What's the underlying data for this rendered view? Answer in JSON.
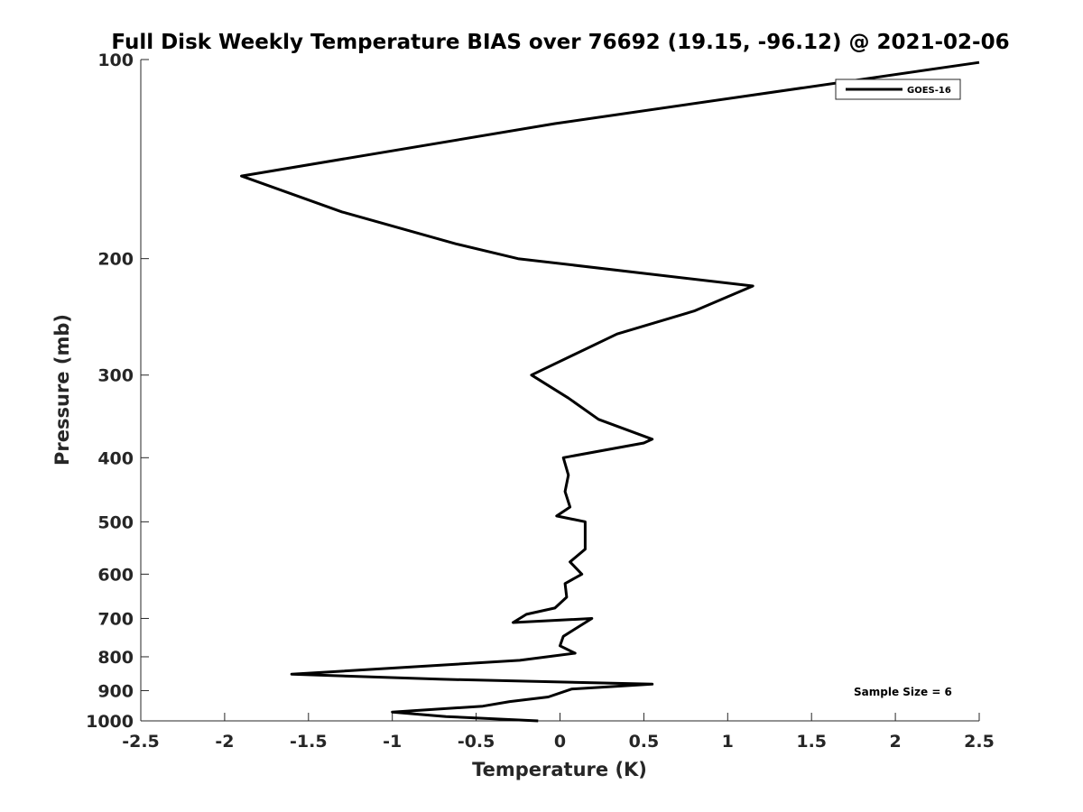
{
  "chart_data": {
    "type": "line",
    "title": "Full Disk Weekly Temperature BIAS over 76692 (19.15, -96.12) @ 2021-02-06",
    "xlabel": "Temperature (K)",
    "ylabel": "Pressure (mb)",
    "xlim": [
      -2.5,
      2.5
    ],
    "ylim": [
      100,
      1000
    ],
    "y_scale": "log",
    "y_reversed": true,
    "x_ticks": [
      -2.5,
      -2,
      -1.5,
      -1,
      -0.5,
      0,
      0.5,
      1,
      1.5,
      2,
      2.5
    ],
    "x_tick_labels": [
      "-2.5",
      "-2",
      "-1.5",
      "-1",
      "-0.5",
      "0",
      "0.5",
      "1",
      "1.5",
      "2",
      "2.5"
    ],
    "y_ticks": [
      100,
      200,
      300,
      400,
      500,
      600,
      700,
      800,
      900,
      1000
    ],
    "y_tick_labels": [
      "100",
      "200",
      "300",
      "400",
      "500",
      "600",
      "700",
      "800",
      "900",
      "1000"
    ],
    "grid": false,
    "legend_position": "top-right",
    "series": [
      {
        "name": "GOES-16",
        "color": "#000000",
        "points": [
          [
            2.5,
            101
          ],
          [
            -0.03,
            125
          ],
          [
            -1.9,
            150
          ],
          [
            -1.3,
            170
          ],
          [
            -0.62,
            190
          ],
          [
            -0.25,
            200
          ],
          [
            1.15,
            220
          ],
          [
            0.8,
            240
          ],
          [
            0.34,
            260
          ],
          [
            -0.17,
            300
          ],
          [
            0.05,
            325
          ],
          [
            0.23,
            350
          ],
          [
            0.55,
            375
          ],
          [
            0.5,
            380
          ],
          [
            0.02,
            400
          ],
          [
            0.05,
            425
          ],
          [
            0.03,
            450
          ],
          [
            0.06,
            475
          ],
          [
            -0.02,
            490
          ],
          [
            0.15,
            500
          ],
          [
            0.15,
            550
          ],
          [
            0.06,
            575
          ],
          [
            0.13,
            600
          ],
          [
            0.03,
            620
          ],
          [
            0.04,
            650
          ],
          [
            -0.03,
            675
          ],
          [
            -0.2,
            690
          ],
          [
            -0.28,
            710
          ],
          [
            0.19,
            700
          ],
          [
            0.02,
            745
          ],
          [
            0.0,
            770
          ],
          [
            0.09,
            790
          ],
          [
            -0.24,
            810
          ],
          [
            -1.6,
            850
          ],
          [
            -0.72,
            865
          ],
          [
            0.55,
            880
          ],
          [
            0.07,
            895
          ],
          [
            -0.07,
            920
          ],
          [
            -0.3,
            935
          ],
          [
            -0.46,
            950
          ],
          [
            -1.0,
            970
          ],
          [
            -0.68,
            985
          ],
          [
            -0.13,
            1000
          ]
        ]
      }
    ],
    "annotation": "Sample Size = 6"
  }
}
